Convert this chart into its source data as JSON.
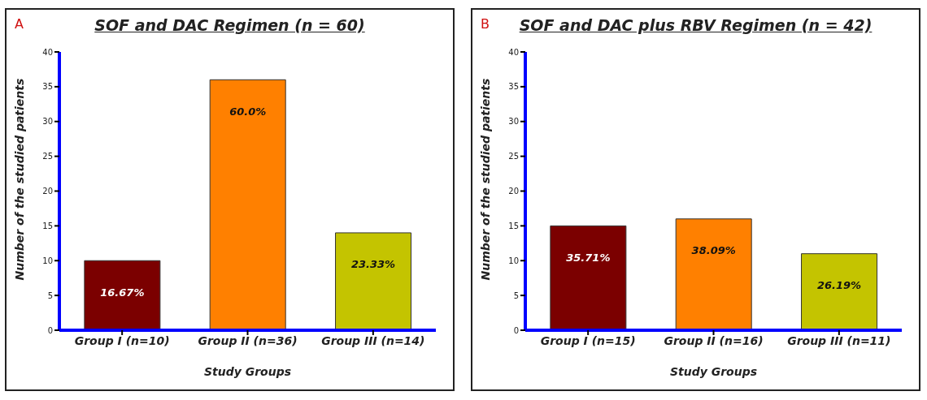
{
  "chart_data": [
    {
      "type": "bar",
      "title": "SOF and DAC Regimen (n = 60)",
      "annotations": [
        "A",
        {
          "text": "16.67%",
          "x": "Group I (n=10)",
          "y": 10
        },
        {
          "text": "60.0%",
          "x": "Group II (n=36)",
          "y": 36
        },
        {
          "text": "23.33%",
          "x": "Group III (n=14)",
          "y": 14
        }
      ],
      "xlabel": "Study Groups",
      "ylabel": "Number of the studied patients",
      "categories": [
        "Group I (n=10)",
        "Group II (n=36)",
        "Group III (n=14)"
      ],
      "values": [
        10,
        36,
        14
      ],
      "colors": [
        "#7b0000",
        "#ff8000",
        "#c4c400"
      ],
      "ylim": [
        0,
        40
      ],
      "yticks": [
        0,
        5,
        10,
        15,
        20,
        25,
        30,
        35,
        40
      ],
      "grid": false,
      "legend": false
    },
    {
      "type": "bar",
      "title": "SOF and DAC plus RBV Regimen (n = 42)",
      "annotations": [
        "B",
        {
          "text": "35.71%",
          "x": "Group I (n=15)",
          "y": 15
        },
        {
          "text": "38.09%",
          "x": "Group II (n=16)",
          "y": 16
        },
        {
          "text": "26.19%",
          "x": "Group III (n=11)",
          "y": 11
        }
      ],
      "xlabel": "Study Groups",
      "ylabel": "Number of the studied patients",
      "categories": [
        "Group I (n=15)",
        "Group II (n=16)",
        "Group III (n=11)"
      ],
      "values": [
        15,
        16,
        11
      ],
      "colors": [
        "#7b0000",
        "#ff8000",
        "#c4c400"
      ],
      "ylim": [
        0,
        40
      ],
      "yticks": [
        0,
        5,
        10,
        15,
        20,
        25,
        30,
        35,
        40
      ],
      "grid": false,
      "legend": false
    }
  ]
}
